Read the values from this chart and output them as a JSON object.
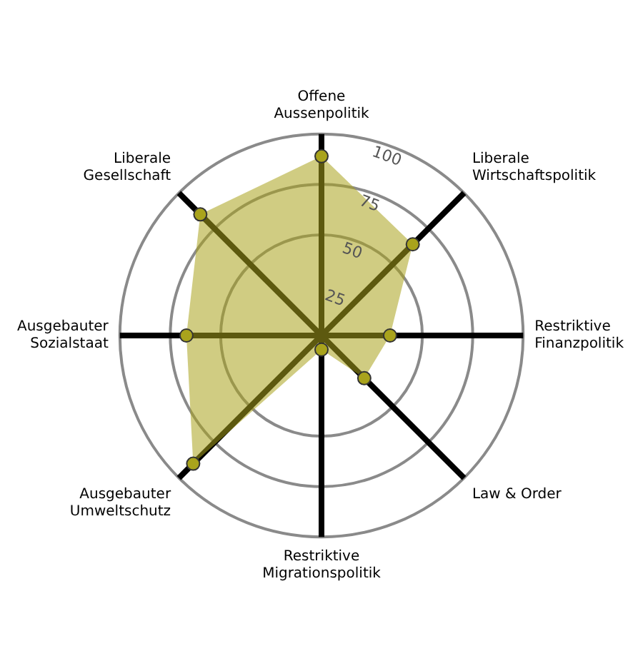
{
  "chart_data": {
    "type": "radar",
    "categories": [
      "Offene\nAussenpolitik",
      "Liberale\nWirtschaftspolitik",
      "Restriktive\nFinanzpolitik",
      "Law & Order",
      "Restriktive\nMigrationspolitik",
      "Ausgebauter\nUmweltschutz",
      "Ausgebauter\nSozialstaat",
      "Liberale\nGesellschaft"
    ],
    "series": [
      {
        "color": "#a9a31c",
        "values": [
          89,
          64,
          34,
          30,
          7,
          90,
          67,
          85
        ]
      }
    ],
    "ylim": [
      0,
      100
    ],
    "yticks": [
      25,
      50,
      75,
      100
    ],
    "grid": true,
    "legend": false,
    "marker": "circle"
  }
}
